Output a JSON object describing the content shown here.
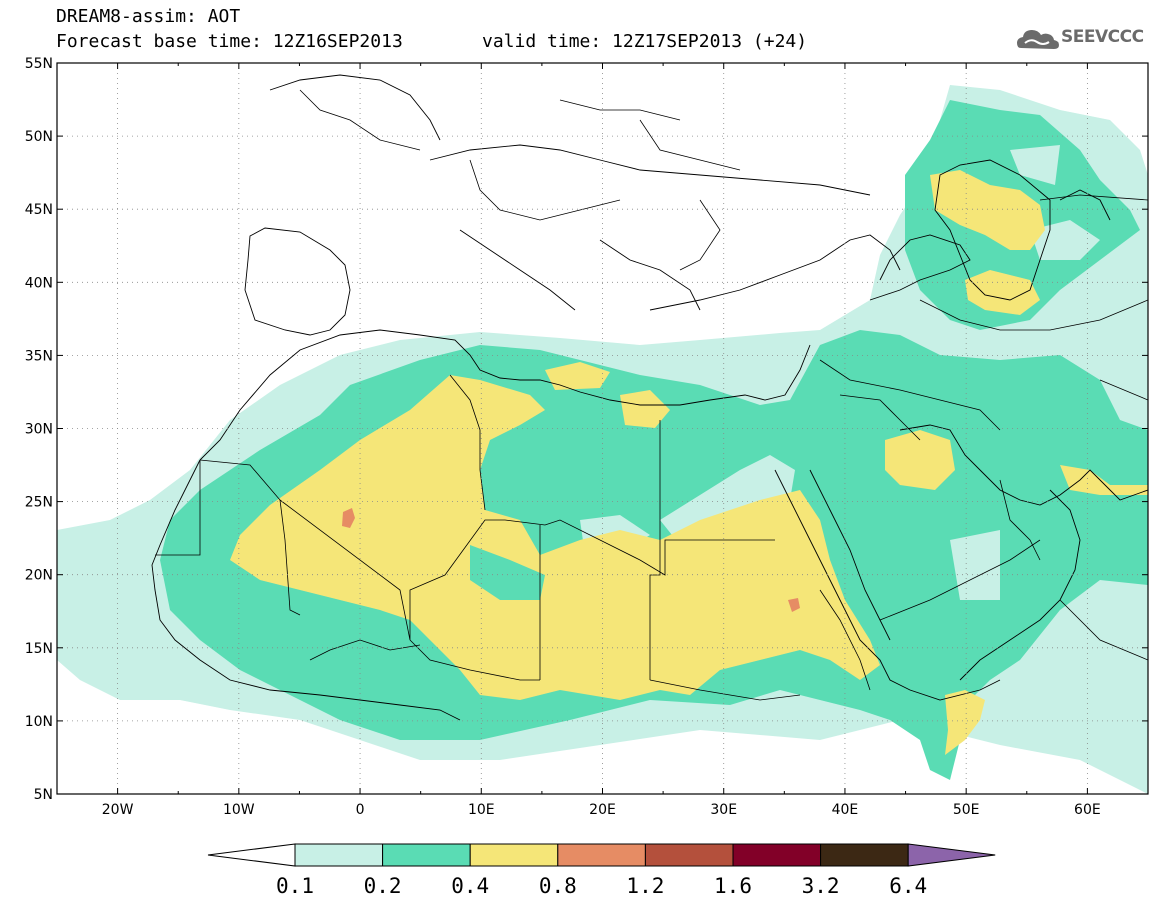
{
  "header": {
    "title_line1": "DREAM8-assim: AOT",
    "title_line2_left": "Forecast base time: 12Z16SEP2013",
    "title_line2_right": "valid time: 12Z17SEP2013 (+24)",
    "logo_text": "SEEVCCC"
  },
  "map": {
    "lat_labels": [
      "55N",
      "50N",
      "45N",
      "40N",
      "35N",
      "30N",
      "25N",
      "20N",
      "15N",
      "10N",
      "5N"
    ],
    "lon_labels": [
      "20W",
      "10W",
      "0",
      "10E",
      "20E",
      "30E",
      "40E",
      "50E",
      "60E"
    ],
    "lon_range": [
      -25,
      65
    ],
    "lat_range": [
      5,
      55
    ],
    "grid": "dotted"
  },
  "legend": {
    "labels": [
      "0.1",
      "0.2",
      "0.4",
      "0.8",
      "1.2",
      "1.6",
      "3.2",
      "6.4"
    ],
    "colors": [
      "#c8f0e6",
      "#5adcb4",
      "#f5e678",
      "#e68c64",
      "#b4503c",
      "#820028",
      "#3c2814",
      "#8c64aa"
    ],
    "under_color": "#ffffff"
  },
  "colors": {
    "aot_0_1": "#c8f0e6",
    "aot_0_2": "#5adcb4",
    "aot_0_4": "#f5e678",
    "aot_0_8": "#e68c64"
  }
}
